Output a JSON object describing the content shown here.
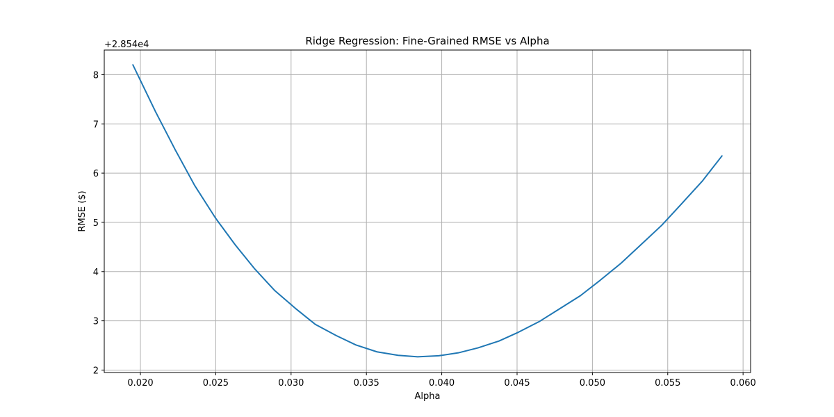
{
  "chart_data": {
    "type": "line",
    "title": "Ridge Regression: Fine-Grained RMSE vs Alpha",
    "xlabel": "Alpha",
    "ylabel": "RMSE ($)",
    "offset_label": "+2.854e4",
    "xlim": [
      0.0176,
      0.0605
    ],
    "ylim": [
      1.95,
      8.5
    ],
    "x_ticks": [
      0.02,
      0.025,
      0.03,
      0.035,
      0.04,
      0.045,
      0.05,
      0.055,
      0.06
    ],
    "x_tick_labels": [
      "0.020",
      "0.025",
      "0.030",
      "0.035",
      "0.040",
      "0.045",
      "0.050",
      "0.055",
      "0.060"
    ],
    "y_ticks": [
      2,
      3,
      4,
      5,
      6,
      7,
      8
    ],
    "y_tick_labels": [
      "2",
      "3",
      "4",
      "5",
      "6",
      "7",
      "8"
    ],
    "grid": true,
    "color": "#1f77b4",
    "series": [
      {
        "x": [
          0.0195,
          0.021,
          0.0223,
          0.0236,
          0.025,
          0.0263,
          0.0276,
          0.0289,
          0.0303,
          0.0316,
          0.033,
          0.0343,
          0.0357,
          0.0371,
          0.0384,
          0.0398,
          0.0411,
          0.0424,
          0.0438,
          0.0451,
          0.0465,
          0.0478,
          0.0492,
          0.0505,
          0.0519,
          0.0532,
          0.0546,
          0.0559,
          0.0573,
          0.0586
        ],
        "y": [
          8.2,
          7.25,
          6.48,
          5.75,
          5.08,
          4.54,
          4.05,
          3.62,
          3.25,
          2.93,
          2.7,
          2.51,
          2.37,
          2.3,
          2.27,
          2.29,
          2.35,
          2.45,
          2.59,
          2.77,
          2.99,
          3.24,
          3.51,
          3.82,
          4.17,
          4.54,
          4.94,
          5.37,
          5.84,
          6.35
        ]
      }
    ]
  }
}
